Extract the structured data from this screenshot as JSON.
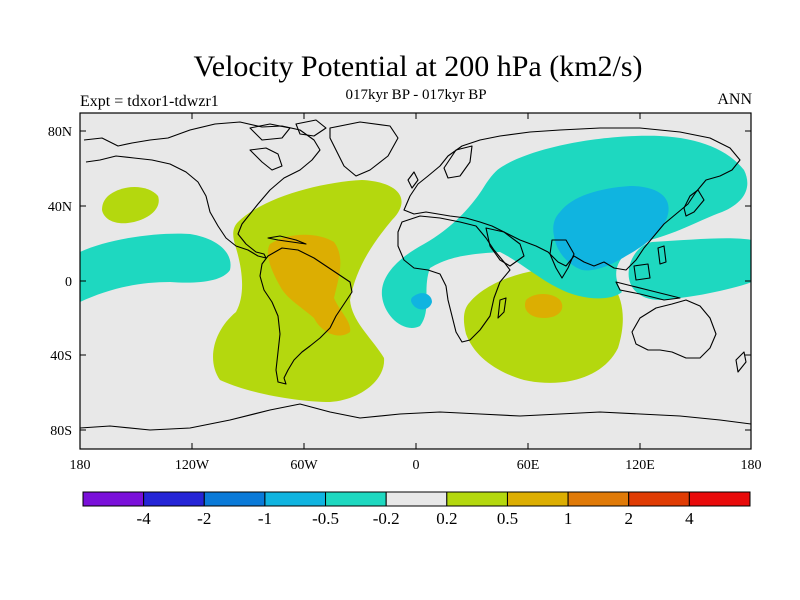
{
  "title": "Velocity Potential at 200 hPa (km2/s)",
  "subtitle": "017kyr BP - 017kyr BP",
  "left_string": "Expt = tdxor1-tdwzr1",
  "right_string": "ANN",
  "lat_labels": [
    "80N",
    "40N",
    "0",
    "40S",
    "80S"
  ],
  "lon_labels": [
    "180",
    "120W",
    "60W",
    "0",
    "60E",
    "120E",
    "180"
  ],
  "colorbar": {
    "labels": [
      "-4",
      "-2",
      "-1",
      "-0.5",
      "-0.2",
      "0.2",
      "0.5",
      "1",
      "2",
      "4"
    ],
    "colors": [
      "#7a10d9",
      "#2525d6",
      "#0a7ad8",
      "#10b4e0",
      "#1ed8c0",
      "#e8e8e8",
      "#b4d80e",
      "#dcae02",
      "#e07a08",
      "#e03c04",
      "#e80a0a"
    ]
  },
  "colors": {
    "ocean_background": "#e8e8e8",
    "coast": "#000000"
  }
}
